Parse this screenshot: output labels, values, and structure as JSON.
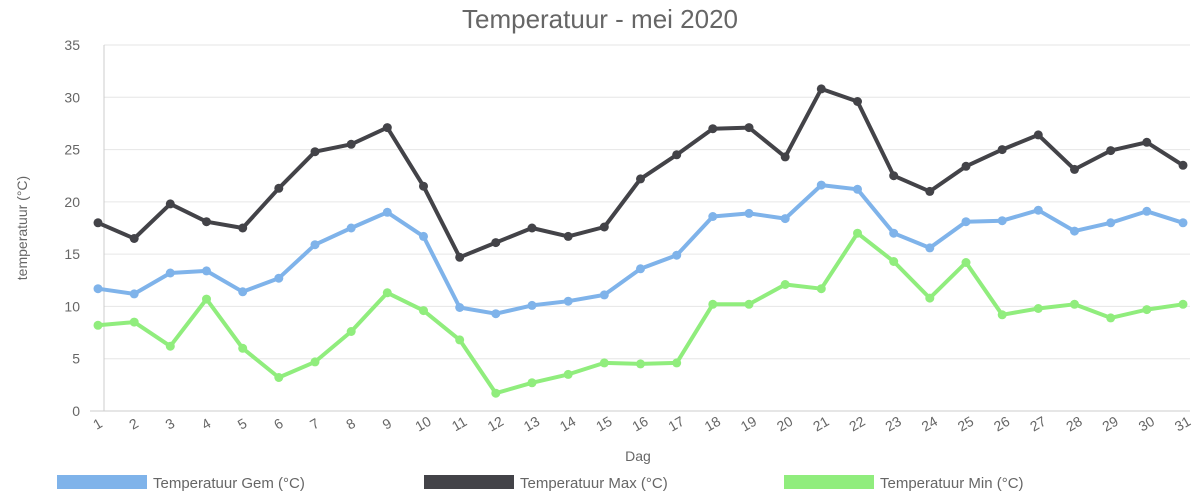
{
  "chart_data": {
    "type": "line",
    "title": "Temperatuur - mei 2020",
    "xlabel": "Dag",
    "ylabel": "temperatuur (°C)",
    "ylim": [
      0,
      35
    ],
    "yticks": [
      0,
      5,
      10,
      15,
      20,
      25,
      30,
      35
    ],
    "grid": true,
    "legend": "bottom",
    "categories": [
      "1",
      "2",
      "3",
      "4",
      "5",
      "6",
      "7",
      "8",
      "9",
      "10",
      "11",
      "12",
      "13",
      "14",
      "15",
      "16",
      "17",
      "18",
      "19",
      "20",
      "21",
      "22",
      "23",
      "24",
      "25",
      "26",
      "27",
      "28",
      "29",
      "30",
      "31"
    ],
    "series": [
      {
        "name": "Temperatuur Gem (°C)",
        "color": "#7fb3ea",
        "values": [
          11.7,
          11.2,
          13.2,
          13.4,
          11.4,
          12.7,
          15.9,
          17.5,
          19.0,
          16.7,
          9.9,
          9.3,
          10.1,
          10.5,
          11.1,
          13.6,
          14.9,
          18.6,
          18.9,
          18.4,
          21.6,
          21.2,
          17.0,
          15.6,
          18.1,
          18.2,
          19.2,
          17.2,
          18.0,
          19.1,
          18.0
        ]
      },
      {
        "name": "Temperatuur Max (°C)",
        "color": "#434348",
        "values": [
          18.0,
          16.5,
          19.8,
          18.1,
          17.5,
          21.3,
          24.8,
          25.5,
          27.1,
          21.5,
          14.7,
          16.1,
          17.5,
          16.7,
          17.6,
          22.2,
          24.5,
          27.0,
          27.1,
          24.3,
          30.8,
          29.6,
          22.5,
          21.0,
          23.4,
          25.0,
          26.4,
          23.1,
          24.9,
          25.7,
          23.5
        ]
      },
      {
        "name": "Temperatuur Min (°C)",
        "color": "#90ed7d",
        "values": [
          8.2,
          8.5,
          6.2,
          10.7,
          6.0,
          3.2,
          4.7,
          7.6,
          11.3,
          9.6,
          6.8,
          1.7,
          2.7,
          3.5,
          4.6,
          4.5,
          4.6,
          10.2,
          10.2,
          12.1,
          11.7,
          17.0,
          14.3,
          10.8,
          14.2,
          9.2,
          9.8,
          10.2,
          8.9,
          9.7,
          10.2
        ]
      }
    ]
  }
}
